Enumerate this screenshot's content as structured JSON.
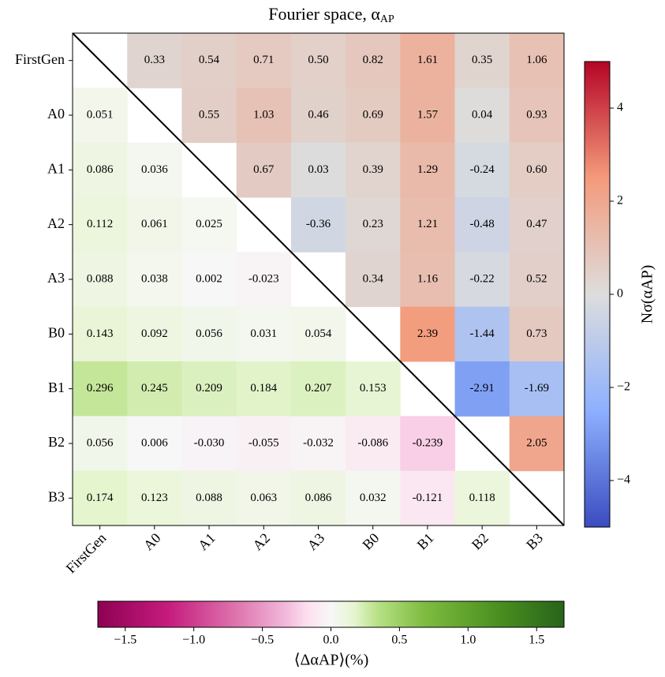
{
  "chart_data": {
    "type": "heatmap",
    "title": "Fourier space, α",
    "title_subscript": "AP",
    "categories": [
      "FirstGen",
      "A0",
      "A1",
      "A2",
      "A3",
      "B0",
      "B1",
      "B2",
      "B3"
    ],
    "values": [
      [
        null,
        0.33,
        0.54,
        0.71,
        0.5,
        0.82,
        1.61,
        0.35,
        1.06
      ],
      [
        0.051,
        null,
        0.55,
        1.03,
        0.46,
        0.69,
        1.57,
        0.04,
        0.93
      ],
      [
        0.086,
        0.036,
        null,
        0.67,
        0.03,
        0.39,
        1.29,
        -0.24,
        0.6
      ],
      [
        0.112,
        0.061,
        0.025,
        null,
        -0.36,
        0.23,
        1.21,
        -0.48,
        0.47
      ],
      [
        0.088,
        0.038,
        0.002,
        -0.023,
        null,
        0.34,
        1.16,
        -0.22,
        0.52
      ],
      [
        0.143,
        0.092,
        0.056,
        0.031,
        0.054,
        null,
        2.39,
        -1.44,
        0.73
      ],
      [
        0.296,
        0.245,
        0.209,
        0.184,
        0.207,
        0.153,
        null,
        -2.91,
        -1.69
      ],
      [
        0.056,
        0.006,
        -0.03,
        -0.055,
        -0.032,
        -0.086,
        -0.239,
        null,
        2.05
      ],
      [
        0.174,
        0.123,
        0.088,
        0.063,
        0.086,
        0.032,
        -0.121,
        0.118,
        null
      ]
    ],
    "value_labels": [
      [
        null,
        "0.33",
        "0.54",
        "0.71",
        "0.50",
        "0.82",
        "1.61",
        "0.35",
        "1.06"
      ],
      [
        "0.051",
        null,
        "0.55",
        "1.03",
        "0.46",
        "0.69",
        "1.57",
        "0.04",
        "0.93"
      ],
      [
        "0.086",
        "0.036",
        null,
        "0.67",
        "0.03",
        "0.39",
        "1.29",
        "-0.24",
        "0.60"
      ],
      [
        "0.112",
        "0.061",
        "0.025",
        null,
        "-0.36",
        "0.23",
        "1.21",
        "-0.48",
        "0.47"
      ],
      [
        "0.088",
        "0.038",
        "0.002",
        "-0.023",
        null,
        "0.34",
        "1.16",
        "-0.22",
        "0.52"
      ],
      [
        "0.143",
        "0.092",
        "0.056",
        "0.031",
        "0.054",
        null,
        "2.39",
        "-1.44",
        "0.73"
      ],
      [
        "0.296",
        "0.245",
        "0.209",
        "0.184",
        "0.207",
        "0.153",
        null,
        "-2.91",
        "-1.69"
      ],
      [
        "0.056",
        "0.006",
        "-0.030",
        "-0.055",
        "-0.032",
        "-0.086",
        "-0.239",
        null,
        "2.05"
      ],
      [
        "0.174",
        "0.123",
        "0.088",
        "0.063",
        "0.086",
        "0.032",
        "-0.121",
        "0.118",
        null
      ]
    ],
    "upper": {
      "colormap": "coolwarm",
      "clim": [
        -5,
        5
      ],
      "ticks": [
        {
          "value": -4,
          "label": "−4"
        },
        {
          "value": -2,
          "label": "−2"
        },
        0,
        2,
        4
      ],
      "label": "Nσ(αAP)"
    },
    "lower": {
      "colormap": "PiYG",
      "clim": [
        -1.7,
        1.7
      ],
      "ticks": [
        {
          "value": -1.5,
          "label": "−1.5"
        },
        {
          "value": -1.0,
          "label": "−1.0"
        },
        {
          "value": -0.5,
          "label": "−0.5"
        },
        {
          "value": 0,
          "label": "0.0"
        },
        0.5,
        {
          "value": 1.0,
          "label": "1.0"
        },
        1.5
      ],
      "label": "⟨ΔαAP⟩(%)"
    }
  }
}
